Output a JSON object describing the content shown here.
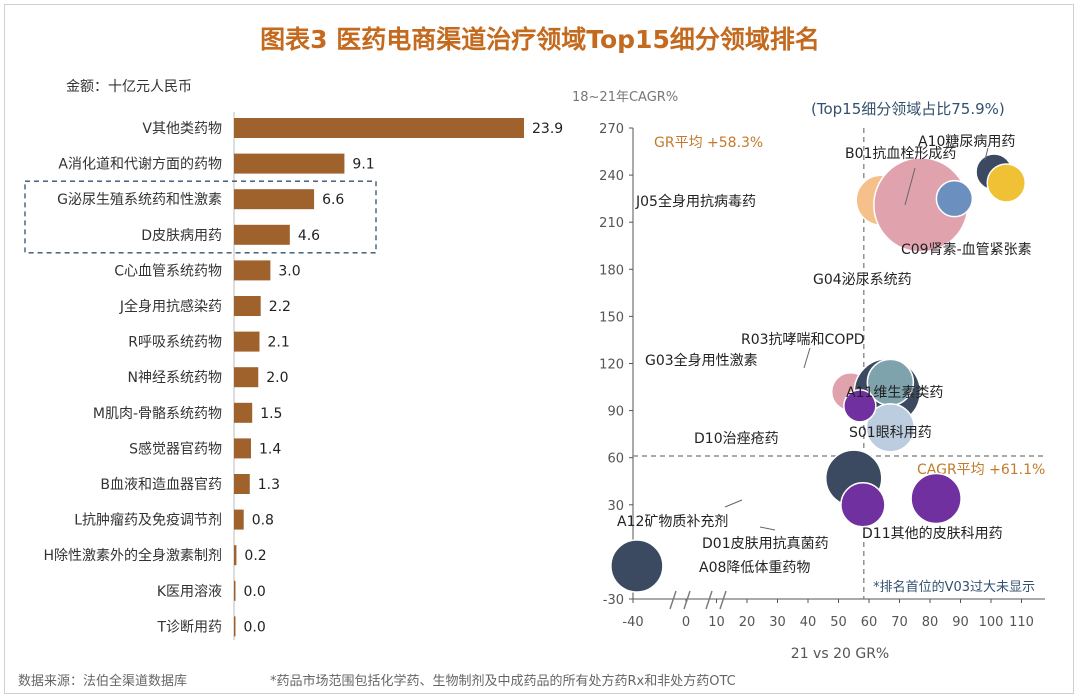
{
  "title": "图表3 医药电商渠道治疗领域Top15细分领域排名",
  "unit": "金额：十亿元人民币",
  "footer": {
    "source": "数据来源：法伯全渠道数据库",
    "note": "*药品市场范围包括化学药、生物制剂及中成药品的所有处方药Rx和非处方药OTC"
  },
  "colors": {
    "bar": "#a0622d",
    "axis": "#444444",
    "accent": "#c47a2a",
    "highlight_box": "#33506e"
  },
  "chart_data": [
    {
      "type": "bar",
      "orientation": "horizontal",
      "categories": [
        "V其他类药物",
        "A消化道和代谢方面的药物",
        "G泌尿生殖系统药和性激素",
        "D皮肤病用药",
        "C心血管系统药物",
        "J全身用抗感染药",
        "R呼吸系统药物",
        "N神经系统药物",
        "M肌肉-骨骼系统药物",
        "S感觉器官药物",
        "B血液和造血器官药",
        "L抗肿瘤药及免疫调节剂",
        "H除性激素外的全身激素制剂",
        "K医用溶液",
        "T诊断用药"
      ],
      "values": [
        23.9,
        9.1,
        6.6,
        4.6,
        3.0,
        2.2,
        2.1,
        2.0,
        1.5,
        1.4,
        1.3,
        0.8,
        0.2,
        0.0,
        0.0
      ],
      "value_labels": [
        "23.9",
        "9.1",
        "6.6",
        "4.6",
        "3.0",
        "2.2",
        "2.1",
        "2.0",
        "1.5",
        "1.4",
        "1.3",
        "0.8",
        "0.2",
        "0.0",
        "0.0"
      ],
      "xlim": [
        0,
        25
      ],
      "highlighted": [
        "G泌尿生殖系统药和性激素",
        "D皮肤病用药"
      ]
    },
    {
      "type": "scatter",
      "ylabel": "18~21年CAGR%",
      "xlabel": "21 vs 20 GR%",
      "subtitle": "(Top15细分领域占比75.9%)",
      "xticks": [
        "-40",
        "0",
        "10",
        "20",
        "30",
        "40",
        "50",
        "60",
        "70",
        "80",
        "90",
        "100",
        "110"
      ],
      "yticks": [
        "-30",
        "0",
        "30",
        "60",
        "90",
        "120",
        "150",
        "180",
        "210",
        "240",
        "270"
      ],
      "ylim": [
        -30,
        270
      ],
      "ref_lines": {
        "gr_label": "GR平均 +58.3%",
        "gr_value": 58.3,
        "cagr_label": "CAGR平均 +61.1%",
        "cagr_value": 61.1
      },
      "note": "*排名首位的V03过大未显示",
      "points": [
        {
          "name": "J05全身用抗病毒药",
          "x": 64,
          "y": 224,
          "r": 25,
          "color": "#f5c08a"
        },
        {
          "name": "G04泌尿系统药",
          "x": 77,
          "y": 221,
          "r": 47,
          "color": "#e0a3ad"
        },
        {
          "name": "B01抗血栓形成药",
          "x": 88,
          "y": 225,
          "r": 18,
          "color": "#6b8fbf"
        },
        {
          "name": "A10糖尿病用药",
          "x": 101,
          "y": 242,
          "r": 18,
          "color": "#3b4a60"
        },
        {
          "name": "C09肾素-血管紧张素",
          "x": 105,
          "y": 235,
          "r": 19,
          "color": "#f0c035"
        },
        {
          "name": "G03全身用性激素",
          "x": 54,
          "y": 102,
          "r": 19,
          "color": "#e0a3ad"
        },
        {
          "name": "A11维生素类药",
          "x": 66,
          "y": 102,
          "r": 33,
          "color": "#3b4a60"
        },
        {
          "name": "R03抗哮喘和COPD",
          "x": 67,
          "y": 108,
          "r": 23,
          "color": "#7fa3ad"
        },
        {
          "name": "S01眼科用药",
          "x": 67,
          "y": 79,
          "r": 24,
          "color": "#bccde0"
        },
        {
          "name": "D10治痤疮药",
          "x": 57,
          "y": 93,
          "r": 16,
          "color": "#7030a0"
        },
        {
          "name": "A12矿物质补充剂",
          "x": 55,
          "y": 47,
          "r": 28,
          "color": "#3b4a60"
        },
        {
          "name": "D01皮肤用抗真菌药",
          "x": 58,
          "y": 30,
          "r": 22,
          "color": "#7030a0"
        },
        {
          "name": "D11其他的皮肤科用药",
          "x": 82,
          "y": 34,
          "r": 25,
          "color": "#7030a0"
        },
        {
          "name": "A08降低体重药物",
          "x": -37,
          "y": -9,
          "r": 26,
          "color": "#3b4a60"
        }
      ]
    }
  ]
}
